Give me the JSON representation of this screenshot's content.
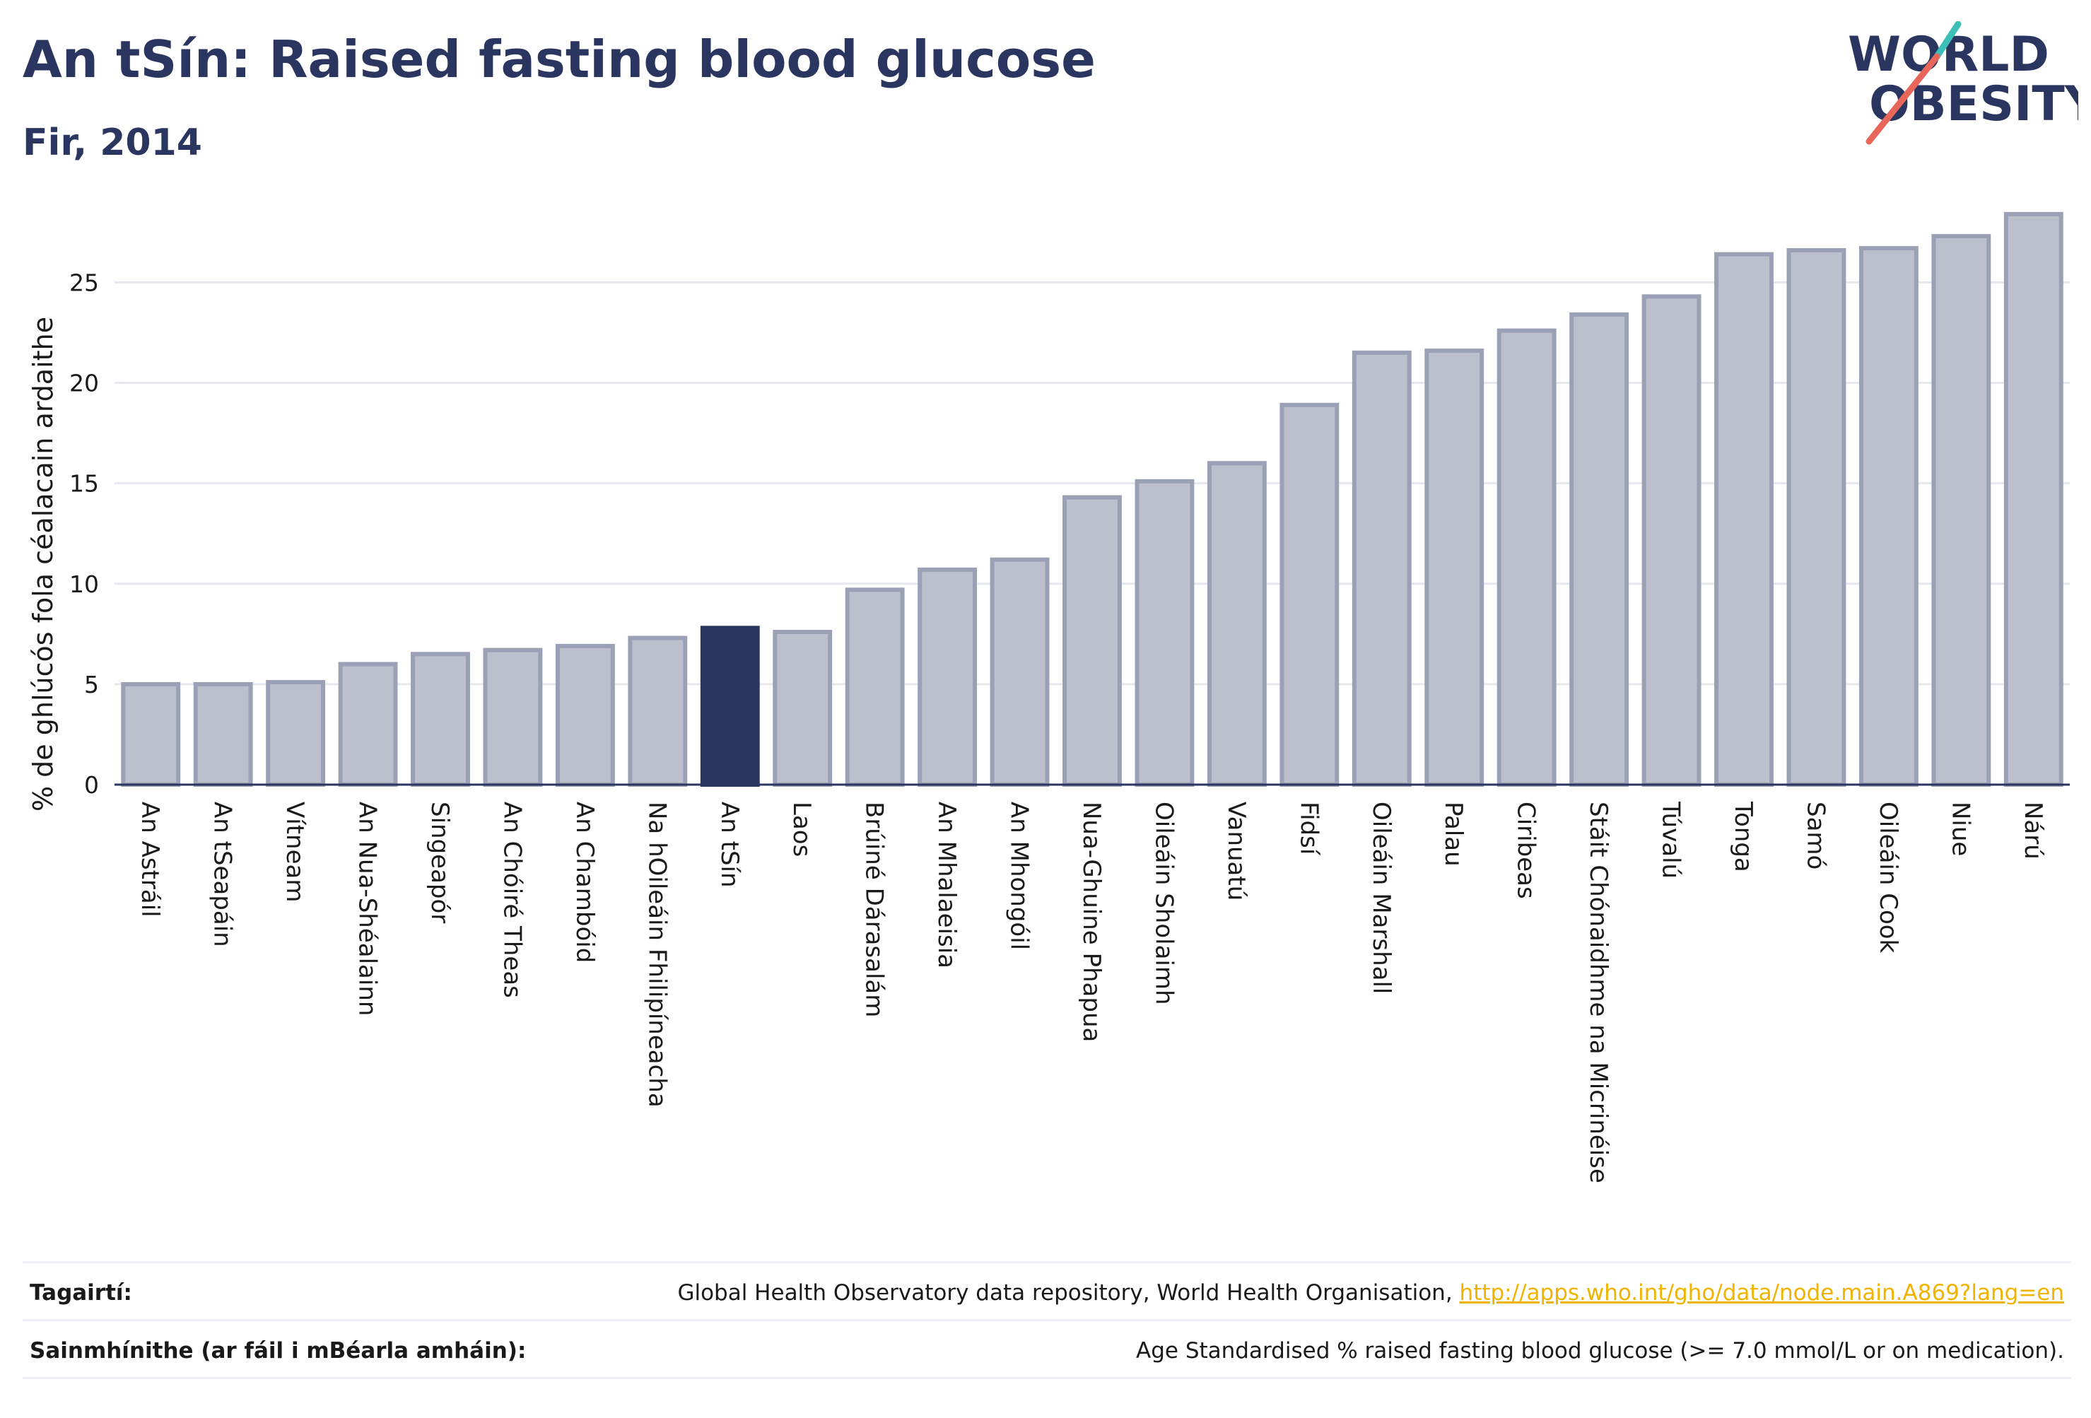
{
  "header": {
    "title": "An tSín: Raised fasting blood glucose",
    "subtitle": "Fir, 2014"
  },
  "logo": {
    "line1": "WORLD",
    "line2": "OBESITY",
    "accent_teal": "#3bbfb8",
    "accent_coral": "#e8675a",
    "text_color": "#2a3560"
  },
  "colors": {
    "bar": "#bcc0cd",
    "bar_border": "#9aa0b5",
    "highlight": "#2a3560",
    "grid": "#e6e8ee",
    "axis": "#2a3560"
  },
  "chart_data": {
    "type": "bar",
    "title": "An tSín: Raised fasting blood glucose",
    "subtitle": "Fir, 2014",
    "ylabel": "% de ghlúcós fola céalacain ardaithe",
    "xlabel": "",
    "ylim": [
      0,
      28.5
    ],
    "yticks": [
      0,
      5,
      10,
      15,
      20,
      25
    ],
    "grid": true,
    "highlight": "An tSín",
    "categories": [
      "An Astráil",
      "An tSeapáin",
      "Vítneam",
      "An Nua-Shéalainn",
      "Singeapór",
      "An Chóiré Theas",
      "An Chambóid",
      "Na hOileáin Fhilipíneacha",
      "An tSín",
      "Laos",
      "Brúiné Dárasalám",
      "An Mhalaeisia",
      "An Mhongóil",
      "Nua-Ghuine Phapua",
      "Oileáin Sholaimh",
      "Vanuatú",
      "Fidsí",
      "Oileáin Marshall",
      "Palau",
      "Ciribeas",
      "Stáit Chónaidhme na Micrinéise",
      "Túvalú",
      "Tonga",
      "Samó",
      "Oileáin Cook",
      "Niue",
      "Nárú"
    ],
    "values": [
      5.0,
      5.0,
      5.1,
      6.0,
      6.5,
      6.7,
      6.9,
      7.3,
      7.8,
      7.6,
      9.7,
      10.7,
      11.2,
      14.3,
      15.1,
      16.0,
      18.9,
      21.5,
      21.6,
      22.6,
      23.4,
      24.3,
      26.4,
      26.6,
      26.7,
      27.3,
      28.4
    ]
  },
  "footer": {
    "references_label": "Tagairtí:",
    "references_text": "Global Health Observatory data repository, World Health Organisation, ",
    "references_link": "http://apps.who.int/gho/data/node.main.A869?lang=en",
    "definitions_label": "Sainmhínithe (ar fáil i mBéarla amháin):",
    "definitions_text": "Age Standardised % raised fasting blood glucose (>= 7.0 mmol/L or on medication)."
  }
}
